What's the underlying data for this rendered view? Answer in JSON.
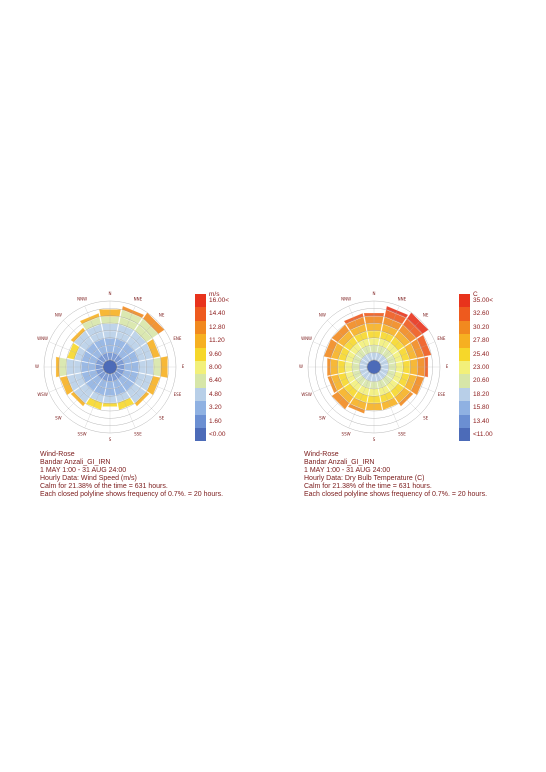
{
  "directions": [
    "N",
    "NNE",
    "NE",
    "ENE",
    "E",
    "ESE",
    "SE",
    "SSE",
    "S",
    "SSW",
    "SW",
    "WSW",
    "W",
    "WNW",
    "NW",
    "NNW"
  ],
  "charts": [
    {
      "id": "left",
      "legend_unit": "m/s",
      "legend_labels": [
        "16.00<",
        "14.40",
        "12.80",
        "11.20",
        "9.60",
        "8.00",
        "6.40",
        "4.80",
        "3.20",
        "1.60",
        "<0.00"
      ],
      "legend_colors": [
        "#e8331c",
        "#ee5a1e",
        "#f1891f",
        "#f6b021",
        "#f6d72a",
        "#f2f07a",
        "#d7e6a8",
        "#b8cfe8",
        "#8fb1e2",
        "#6b8fd2",
        "#4c6bb8"
      ],
      "caption": [
        "Wind-Rose",
        "Bandar Anzali_GI_IRN",
        "1 MAY 1:00 - 31 AUG 24:00",
        "Hourly Data: Wind Speed (m/s)",
        "Calm for 21.38% of the time = 631 hours.",
        "Each closed polyline shows frequency of 0.7%. = 20 hours."
      ]
    },
    {
      "id": "right",
      "legend_unit": "C",
      "legend_labels": [
        "35.00<",
        "32.60",
        "30.20",
        "27.80",
        "25.40",
        "23.00",
        "20.60",
        "18.20",
        "15.80",
        "13.40",
        "<11.00"
      ],
      "legend_colors": [
        "#e8331c",
        "#ee5a1e",
        "#f1891f",
        "#f6b021",
        "#f6d72a",
        "#f2f07a",
        "#d7e6a8",
        "#b8cfe8",
        "#8fb1e2",
        "#6b8fd2",
        "#4c6bb8"
      ],
      "caption": [
        "Wind-Rose",
        "Bandar Anzali_GI_IRN",
        "1 MAY 1:00 - 31 AUG 24:00",
        "Hourly Data: Dry Bulb Temperature (C)",
        "Calm for 21.38% of the time = 631 hours.",
        "Each closed polyline shows frequency of 0.7%. = 20 hours."
      ]
    }
  ],
  "chart_data": [
    {
      "type": "wind-rose",
      "variable": "Wind Speed (m/s)",
      "directions": [
        "N",
        "NNE",
        "NE",
        "ENE",
        "E",
        "ESE",
        "SE",
        "SSE",
        "S",
        "SSW",
        "SW",
        "WSW",
        "W",
        "WNW",
        "NW",
        "NNW"
      ],
      "frequency_rings": 9,
      "ring_frequency_percent": 0.7,
      "sector_extent_rings": [
        8,
        8.5,
        9,
        7,
        8,
        7,
        6.5,
        6,
        5.5,
        6,
        6.5,
        7,
        7.5,
        6,
        6.5,
        7.5
      ],
      "legend_bins": [
        "16.00<",
        "14.40",
        "12.80",
        "11.20",
        "9.60",
        "8.00",
        "6.40",
        "4.80",
        "3.20",
        "1.60",
        "<0.00"
      ],
      "calm_percent": 21.38,
      "calm_hours": 631
    },
    {
      "type": "wind-rose",
      "variable": "Dry Bulb Temperature (C)",
      "directions": [
        "N",
        "NNE",
        "NE",
        "ENE",
        "E",
        "ESE",
        "SE",
        "SSE",
        "S",
        "SSW",
        "SW",
        "WSW",
        "W",
        "WNW",
        "NW",
        "NNW"
      ],
      "frequency_rings": 9,
      "ring_frequency_percent": 0.7,
      "sector_extent_rings": [
        7.5,
        8.5,
        9,
        8,
        7.5,
        7,
        6.5,
        6,
        6,
        6.5,
        7,
        6.5,
        6.5,
        7,
        7,
        7.5
      ],
      "legend_bins": [
        "35.00<",
        "32.60",
        "30.20",
        "27.80",
        "25.40",
        "23.00",
        "20.60",
        "18.20",
        "15.80",
        "13.40",
        "<11.00"
      ],
      "calm_percent": 21.38,
      "calm_hours": 631
    }
  ]
}
